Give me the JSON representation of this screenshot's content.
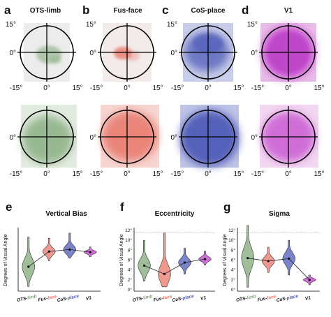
{
  "panel_letters": [
    "a",
    "b",
    "c",
    "d",
    "e",
    "f",
    "g"
  ],
  "top_titles": [
    "OTS-limb",
    "Fus-face",
    "CoS-place",
    "V1"
  ],
  "polar_ticks": {
    "x": [
      "-15°",
      "0°",
      "15°"
    ],
    "y": [
      "15°",
      "0°"
    ]
  },
  "colors": {
    "OTS-limb": "#7fa877",
    "Fus-face": "#e8776a",
    "CoS-place": "#4f5bb8",
    "V1": "#c23fcc"
  },
  "icons": [
    "crosshair-circle-icon"
  ],
  "chart_data": [
    {
      "type": "violin",
      "title": "Vertical Bias",
      "ylabel": "Degrees of Visual Angle",
      "yticks": [],
      "categories": [
        "OTS-limb",
        "Fus-face",
        "CoS-place",
        "V1"
      ],
      "category_label_parts": [
        [
          "OTS-",
          "limb"
        ],
        [
          "Fus-",
          "face"
        ],
        [
          "CoS-",
          "place"
        ],
        [
          "V1",
          ""
        ]
      ],
      "ylim": [
        -6,
        3
      ],
      "median": [
        -2.5,
        -0.2,
        0.1,
        -0.3
      ],
      "range": [
        [
          -5.5,
          2.0
        ],
        [
          -1.6,
          1.8
        ],
        [
          -1.2,
          2.6
        ],
        [
          -1.0,
          0.5
        ]
      ],
      "dashed_reference": null
    },
    {
      "type": "violin",
      "title": "Eccentricity",
      "ylabel": "Degrees of Visual Angle",
      "yticks": [
        "12°",
        "10°",
        "8°",
        "6°",
        "4°",
        "2°",
        "0°"
      ],
      "categories": [
        "OTS-limb",
        "Fus-face",
        "CoS-place",
        "V1"
      ],
      "category_label_parts": [
        [
          "OTS-",
          "limb"
        ],
        [
          "Fus-",
          "face"
        ],
        [
          "CoS-",
          "place"
        ],
        [
          "V1",
          ""
        ]
      ],
      "ylim": [
        0,
        12
      ],
      "median": [
        4.9,
        3.2,
        5.5,
        6.2
      ],
      "range": [
        [
          1.8,
          10.0
        ],
        [
          0.6,
          11.5
        ],
        [
          3.2,
          8.4
        ],
        [
          5.0,
          7.8
        ]
      ],
      "dashed_reference": 11.5
    },
    {
      "type": "violin",
      "title": "Sigma",
      "ylabel": "Degrees of Visual Angle",
      "yticks": [
        "12°",
        "10°",
        "8°",
        "6°",
        "4°",
        "2°",
        "0°"
      ],
      "categories": [
        "OTS-limb",
        "Fus-face",
        "CoS-place",
        "V1"
      ],
      "category_label_parts": [
        [
          "OTS-",
          "limb"
        ],
        [
          "Fus-",
          "face"
        ],
        [
          "CoS-",
          "place"
        ],
        [
          "V1",
          ""
        ]
      ],
      "ylim": [
        0,
        12
      ],
      "median": [
        6.4,
        5.8,
        6.3,
        2.0
      ],
      "range": [
        [
          0.5,
          13.0
        ],
        [
          3.5,
          8.6
        ],
        [
          3.0,
          10.0
        ],
        [
          1.0,
          3.0
        ]
      ],
      "dashed_reference": 11.5
    }
  ]
}
